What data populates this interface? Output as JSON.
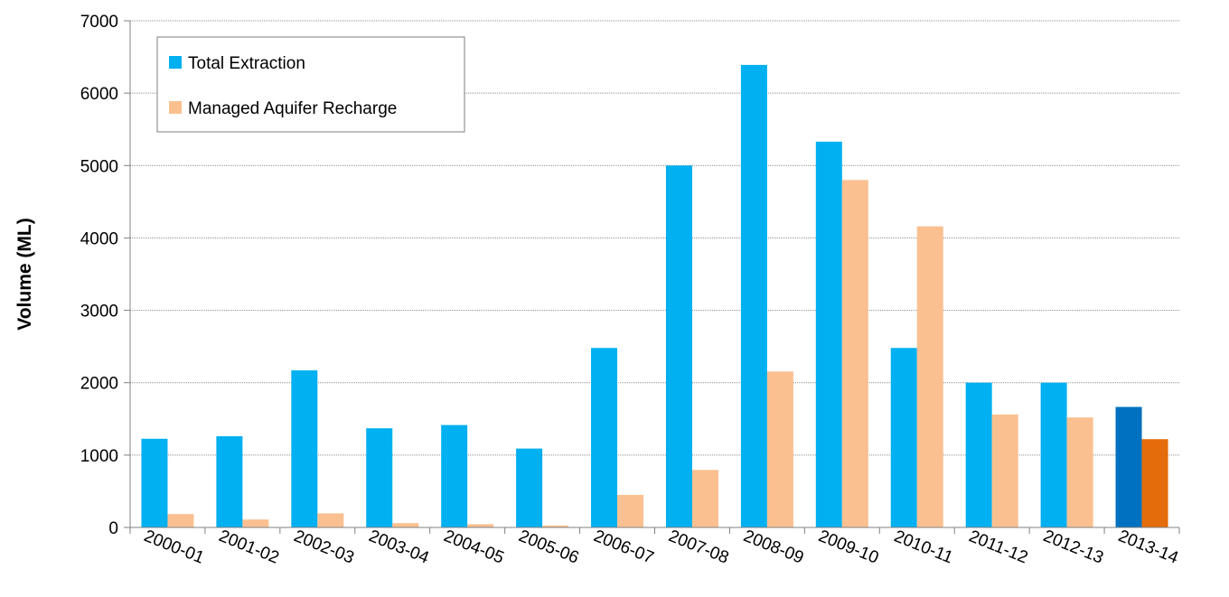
{
  "chart_data": {
    "type": "bar",
    "title": "",
    "xlabel": "",
    "ylabel": "Volume (ML)",
    "ylim": [
      0,
      7000
    ],
    "yticks": [
      0,
      1000,
      2000,
      3000,
      4000,
      5000,
      6000,
      7000
    ],
    "grid": true,
    "legend_position": "top-left",
    "categories": [
      "2000-01",
      "2001-02",
      "2002-03",
      "2003-04",
      "2004-05",
      "2005-06",
      "2006-07",
      "2007-08",
      "2008-09",
      "2009-10",
      "2010-11",
      "2011-12",
      "2012-13",
      "2013-14"
    ],
    "series": [
      {
        "name": "Total Extraction",
        "color": "#00B0F0",
        "highlight_color": "#0070C0",
        "values": [
          1225,
          1260,
          2170,
          1370,
          1415,
          1090,
          2480,
          5000,
          6390,
          5330,
          2480,
          2000,
          2000,
          1665
        ]
      },
      {
        "name": "Managed Aquifer Recharge",
        "color": "#FAC090",
        "highlight_color": "#E46C0A",
        "values": [
          185,
          110,
          195,
          60,
          45,
          25,
          450,
          795,
          2155,
          4800,
          4160,
          1560,
          1520,
          1220
        ]
      }
    ],
    "highlight_index": 13
  }
}
